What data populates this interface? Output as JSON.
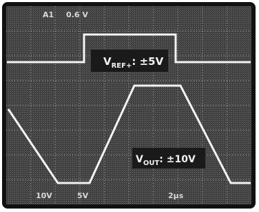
{
  "screen": {
    "top_labels": [
      "A1",
      "0.6 V"
    ],
    "vref_label": {
      "main": "V",
      "sub": "REF+",
      "rest": ": ±5V"
    },
    "vout_label": {
      "main": "V",
      "sub": "OUT",
      "rest": ": ±10V"
    },
    "bottom_labels": [
      "10V",
      "5V",
      "2µs"
    ]
  }
}
